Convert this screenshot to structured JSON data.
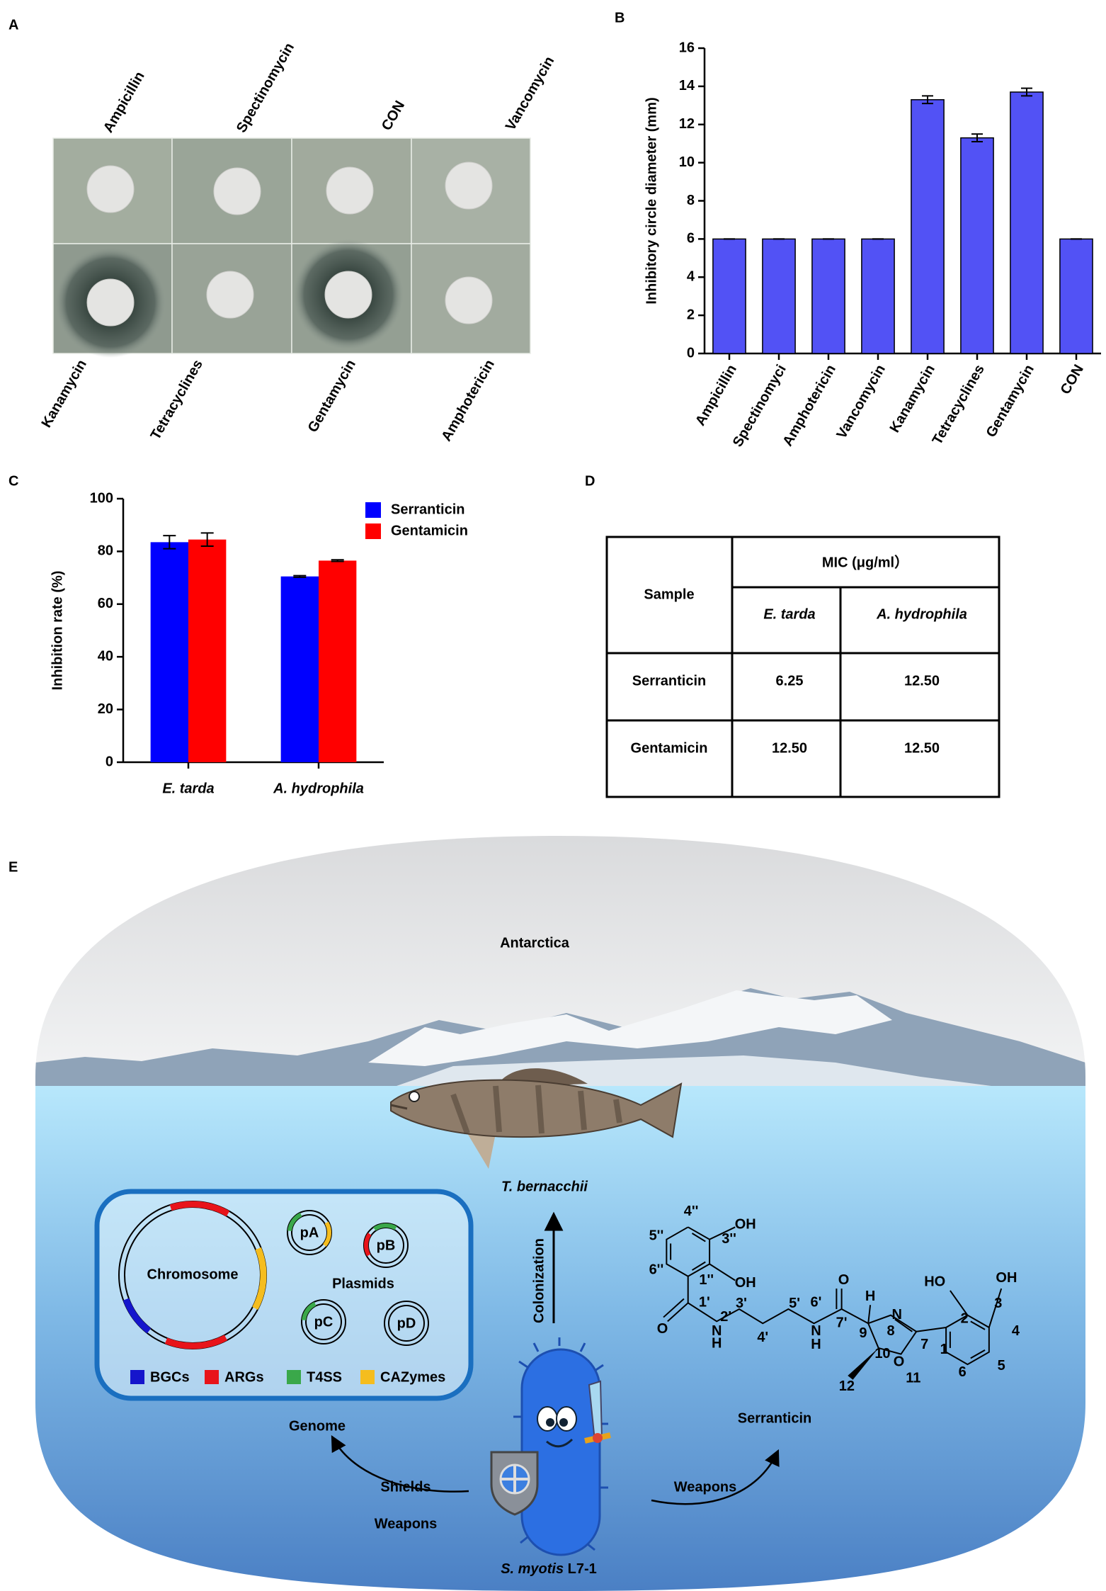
{
  "panel_a": {
    "label": "A",
    "top_labels": [
      "Ampicillin",
      "Spectinomycin",
      "CON",
      "Vancomycin"
    ],
    "bottom_labels": [
      "Kanamycin",
      "Tetracyclines",
      "Gentamycin",
      "Amphotericin"
    ]
  },
  "chart_data": [
    {
      "panel_label": "B",
      "type": "bar",
      "y_label": "Inhibitory circle diameter  (mm)",
      "categories": [
        "Ampicillin",
        "Spectinomyci",
        "Amphotericin",
        "Vancomycin",
        "Kanamycin",
        "Tetracyclines",
        "Gentamycin",
        "CON"
      ],
      "values": [
        6,
        6,
        6,
        6,
        13.3,
        11.3,
        13.7,
        6
      ],
      "errors": [
        0,
        0,
        0,
        0,
        0.2,
        0.2,
        0.2,
        0
      ],
      "color": "#5252f5",
      "ylim": [
        0,
        16
      ],
      "yticks": [
        0,
        2,
        4,
        6,
        8,
        10,
        12,
        14,
        16
      ]
    },
    {
      "panel_label": "C",
      "type": "grouped_bar",
      "y_label": "Inhibition rate (%)",
      "categories": [
        "E. tarda",
        "A. hydrophila"
      ],
      "series": [
        {
          "name": "Serranticin",
          "color": "#0000ff",
          "values": [
            83.5,
            70.5
          ],
          "errors": [
            2.5,
            0.3
          ]
        },
        {
          "name": "Gentamicin",
          "color": "#ff0000",
          "values": [
            84.5,
            76.5
          ],
          "errors": [
            2.5,
            0.3
          ]
        }
      ],
      "ylim": [
        0,
        100
      ],
      "yticks": [
        0,
        20,
        40,
        60,
        80,
        100
      ],
      "legend": "upper right"
    }
  ],
  "panel_d": {
    "label": "D",
    "header": {
      "sample": "Sample",
      "mic": "MIC (μg/ml）",
      "columns": [
        "E. tarda",
        "A. hydrophila"
      ]
    },
    "rows": [
      [
        "Serranticin",
        "6.25",
        "12.50"
      ],
      [
        "Gentamicin",
        "12.50",
        "12.50"
      ]
    ]
  },
  "panel_e": {
    "label": "E",
    "location": "Antarctica",
    "fish": "T. bernacchii",
    "arrow": "Colonization",
    "genome_box": {
      "chromosome": "Chromosome",
      "plasmids": [
        "pA",
        "pB",
        "pC",
        "pD"
      ],
      "plasmids_label": "Plasmids",
      "legend": [
        {
          "name": "BGCs",
          "color": "#1515cc"
        },
        {
          "name": "ARGs",
          "color": "#e8141a"
        },
        {
          "name": "T4SS",
          "color": "#3aa84a"
        },
        {
          "name": "CAZymes",
          "color": "#f5bd1e"
        }
      ]
    },
    "genome": "Genome",
    "compound": "Serranticin",
    "shields": "Shields",
    "weapons_left": "Weapons",
    "weapons_right": "Weapons",
    "bacterium": {
      "species": "S. myotis",
      "strain": "L7-1"
    },
    "structure_labels": [
      "4''",
      "OH",
      "5''",
      "3''",
      "6''",
      "1''",
      "OH",
      "O",
      "H",
      "N",
      "HO",
      "OH",
      "1'",
      "3'",
      "5'",
      "6'",
      "2'",
      "O",
      "N",
      "H",
      "4'",
      "N",
      "H",
      "7'",
      "9",
      "8",
      "3",
      "2",
      "4",
      "7",
      "1",
      "10",
      "O",
      "6",
      "5",
      "11",
      "12"
    ]
  }
}
